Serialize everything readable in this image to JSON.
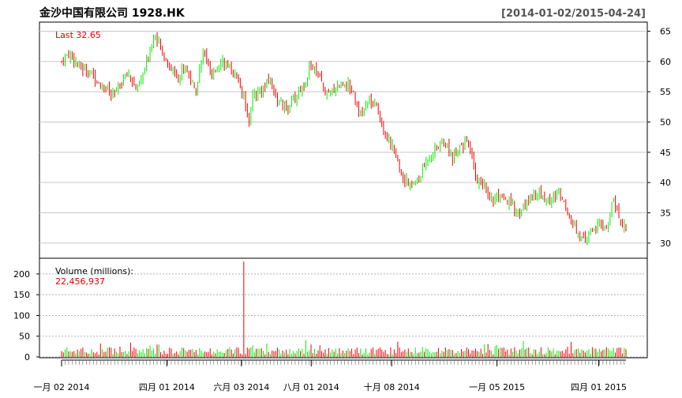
{
  "header": {
    "title": "金沙中国有限公司 1928.HK",
    "date_range": "[2014-01-02/2015-04-24]"
  },
  "price_panel": {
    "last_label": "Last 32.65"
  },
  "volume_panel": {
    "label": "Volume (millions):",
    "last_volume": "22,456,937"
  },
  "colors": {
    "up": "#00ee00",
    "down": "#ee0000",
    "highlight_text": "#dd0000",
    "grid": "#c8c8c8",
    "volume_grid": "#b0b0b0"
  },
  "chart_data": [
    {
      "type": "candlestick",
      "title": "金沙中国有限公司 1928.HK",
      "x_range": [
        "2014-01-02",
        "2015-04-24"
      ],
      "y_ticks": [
        30,
        35,
        40,
        45,
        50,
        55,
        60,
        65
      ],
      "ylim": [
        27.5,
        66.5
      ],
      "grid": true,
      "last_value": 32.65,
      "series": [
        {
          "name": "close",
          "points": [
            [
              "2014-01-02",
              60.0
            ],
            [
              "2014-01-09",
              61.5
            ],
            [
              "2014-01-17",
              59.0
            ],
            [
              "2014-01-24",
              58.5
            ],
            [
              "2014-02-07",
              56.0
            ],
            [
              "2014-02-14",
              54.0
            ],
            [
              "2014-02-21",
              56.5
            ],
            [
              "2014-02-28",
              58.0
            ],
            [
              "2014-03-07",
              55.0
            ],
            [
              "2014-03-14",
              59.0
            ],
            [
              "2014-03-21",
              64.5
            ],
            [
              "2014-03-28",
              61.5
            ],
            [
              "2014-04-04",
              59.0
            ],
            [
              "2014-04-11",
              57.5
            ],
            [
              "2014-04-17",
              59.5
            ],
            [
              "2014-04-25",
              55.0
            ],
            [
              "2014-05-02",
              61.5
            ],
            [
              "2014-05-09",
              57.0
            ],
            [
              "2014-05-16",
              60.5
            ],
            [
              "2014-05-23",
              59.0
            ],
            [
              "2014-05-30",
              57.5
            ],
            [
              "2014-06-06",
              53.5
            ],
            [
              "2014-06-10",
              50.0
            ],
            [
              "2014-06-13",
              54.5
            ],
            [
              "2014-06-20",
              55.0
            ],
            [
              "2014-06-27",
              57.0
            ],
            [
              "2014-07-04",
              53.5
            ],
            [
              "2014-07-11",
              52.0
            ],
            [
              "2014-07-18",
              54.0
            ],
            [
              "2014-07-25",
              56.0
            ],
            [
              "2014-08-01",
              59.5
            ],
            [
              "2014-08-08",
              57.0
            ],
            [
              "2014-08-15",
              54.0
            ],
            [
              "2014-08-22",
              56.0
            ],
            [
              "2014-08-29",
              56.5
            ],
            [
              "2014-09-05",
              55.5
            ],
            [
              "2014-09-12",
              51.0
            ],
            [
              "2014-09-19",
              53.5
            ],
            [
              "2014-09-26",
              52.0
            ],
            [
              "2014-10-03",
              48.0
            ],
            [
              "2014-10-10",
              45.0
            ],
            [
              "2014-10-17",
              41.0
            ],
            [
              "2014-10-24",
              39.5
            ],
            [
              "2014-10-31",
              40.5
            ],
            [
              "2014-11-07",
              44.0
            ],
            [
              "2014-11-14",
              45.5
            ],
            [
              "2014-11-21",
              47.0
            ],
            [
              "2014-11-28",
              44.0
            ],
            [
              "2014-12-05",
              46.5
            ],
            [
              "2014-12-12",
              46.0
            ],
            [
              "2014-12-19",
              40.5
            ],
            [
              "2014-12-24",
              39.5
            ],
            [
              "2014-12-31",
              37.5
            ],
            [
              "2015-01-09",
              37.0
            ],
            [
              "2015-01-16",
              36.5
            ],
            [
              "2015-01-23",
              35.0
            ],
            [
              "2015-01-30",
              36.5
            ],
            [
              "2015-02-06",
              38.5
            ],
            [
              "2015-02-13",
              37.5
            ],
            [
              "2015-02-20",
              37.0
            ],
            [
              "2015-02-27",
              38.5
            ],
            [
              "2015-03-06",
              35.0
            ],
            [
              "2015-03-13",
              32.5
            ],
            [
              "2015-03-20",
              30.0
            ],
            [
              "2015-03-27",
              32.5
            ],
            [
              "2015-04-02",
              32.8
            ],
            [
              "2015-04-10",
              33.0
            ],
            [
              "2015-04-13",
              38.5
            ],
            [
              "2015-04-17",
              34.5
            ],
            [
              "2015-04-24",
              32.65
            ]
          ]
        },
        {
          "name": "volume",
          "unit": "millions",
          "last_value": 22456937,
          "y_ticks": [
            0,
            50,
            100,
            150,
            200
          ],
          "ylim": [
            0,
            236
          ],
          "spike": [
            "2014-06-04",
            230
          ]
        }
      ],
      "x_tick_labels": [
        "一月 02 2014",
        "四月 01 2014",
        "六月 03 2014",
        "八月 01 2014",
        "十月 08 2014",
        "一月 05 2015",
        "四月 01 2015"
      ],
      "x_tick_dates": [
        "2014-01-02",
        "2014-04-01",
        "2014-06-03",
        "2014-08-01",
        "2014-10-08",
        "2015-01-05",
        "2015-04-01"
      ]
    }
  ]
}
